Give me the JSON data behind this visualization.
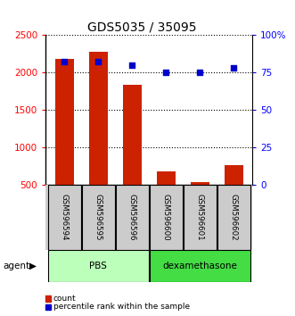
{
  "title": "GDS5035 / 35095",
  "samples": [
    "GSM596594",
    "GSM596595",
    "GSM596596",
    "GSM596600",
    "GSM596601",
    "GSM596602"
  ],
  "counts": [
    2175,
    2275,
    1840,
    680,
    535,
    760
  ],
  "percentile_ranks": [
    82,
    82,
    80,
    75,
    75,
    78
  ],
  "ylim_left": [
    500,
    2500
  ],
  "ylim_right": [
    0,
    100
  ],
  "yticks_left": [
    500,
    1000,
    1500,
    2000,
    2500
  ],
  "yticks_right": [
    0,
    25,
    50,
    75,
    100
  ],
  "ytick_labels_right": [
    "0",
    "25",
    "50",
    "75",
    "100%"
  ],
  "groups": [
    {
      "label": "PBS",
      "indices": [
        0,
        1,
        2
      ],
      "color": "#bbffbb"
    },
    {
      "label": "dexamethasone",
      "indices": [
        3,
        4,
        5
      ],
      "color": "#44dd44"
    }
  ],
  "agent_label": "agent",
  "bar_color": "#cc2200",
  "dot_color": "#0000cc",
  "bar_width": 0.55,
  "title_fontsize": 10,
  "tick_fontsize": 7.5,
  "legend_items": [
    "count",
    "percentile rank within the sample"
  ],
  "legend_colors": [
    "#cc2200",
    "#0000cc"
  ],
  "sample_box_color": "#cccccc",
  "xlim": [
    -0.55,
    5.55
  ]
}
